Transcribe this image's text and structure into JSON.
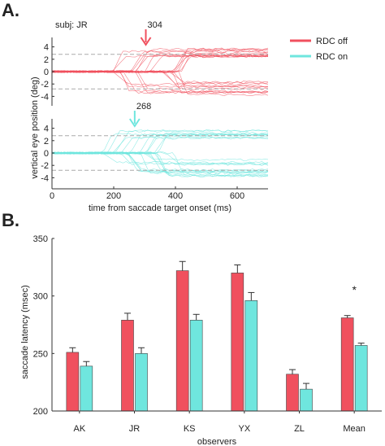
{
  "panel_a_label": "A.",
  "panel_b_label": "B.",
  "subject_label": "subj: JR",
  "colors": {
    "rdc_off": "#f0505e",
    "rdc_on": "#6fe6de",
    "dash": "#aaaaaa",
    "axis": "#333333"
  },
  "chart_data": [
    {
      "type": "line",
      "description_of_content": "eye traces",
      "ylabel": "vertical eye position (deg)",
      "xlabel": "time from saccade target onset (ms)",
      "xlim": [
        0,
        700
      ],
      "x_ticks": [
        "0",
        "200",
        "400",
        "600"
      ],
      "panels": [
        {
          "condition": "RDC off",
          "latency_label": "304",
          "latency_ms": 304,
          "ylim": [
            -5,
            5
          ],
          "y_ticks": [
            "4",
            "2",
            "0",
            "-2",
            "-4"
          ],
          "target_levels": [
            2.8,
            -2.8
          ],
          "end_positions": [
            2.8,
            3.4,
            2.4,
            -2.0,
            -2.8,
            -3.5
          ]
        },
        {
          "condition": "RDC on",
          "latency_label": "268",
          "latency_ms": 268,
          "ylim": [
            -5,
            5
          ],
          "y_ticks": [
            "4",
            "2",
            "0",
            "-2",
            "-4"
          ],
          "target_levels": [
            2.8,
            -2.8
          ],
          "end_positions": [
            2.8,
            3.2,
            -1.5,
            -2.8,
            -3.5
          ]
        }
      ],
      "legend": [
        "RDC off",
        "RDC on"
      ],
      "legend_position": "right"
    },
    {
      "type": "bar",
      "categories": [
        "AK",
        "JR",
        "KS",
        "YX",
        "ZL",
        "Mean"
      ],
      "series": [
        {
          "name": "RDC off",
          "values": [
            251,
            279,
            322,
            320,
            232,
            281
          ],
          "errors": [
            4,
            6,
            8,
            7,
            4,
            2
          ]
        },
        {
          "name": "RDC on",
          "values": [
            239,
            250,
            279,
            296,
            219,
            257
          ],
          "errors": [
            4,
            5,
            5,
            7,
            5,
            2
          ]
        }
      ],
      "ylabel": "saccade latency (msec)",
      "xlabel": "observers",
      "ylim": [
        200,
        350
      ],
      "y_ticks": [
        "350",
        "300",
        "250",
        "200"
      ],
      "annotation": "*"
    }
  ]
}
